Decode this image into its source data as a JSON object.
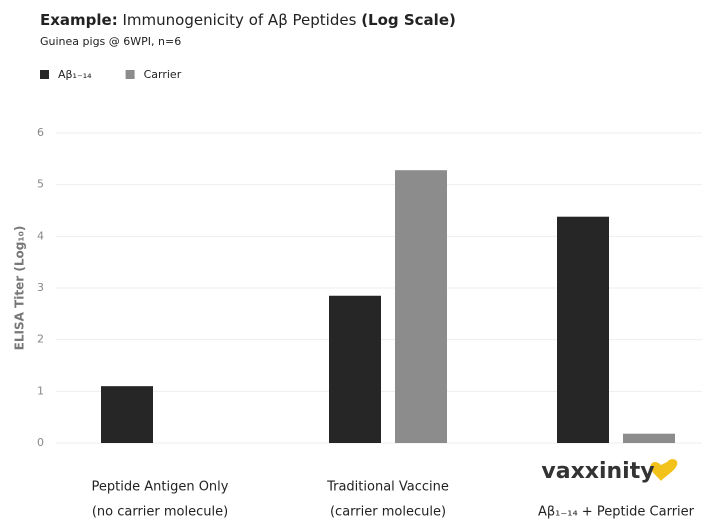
{
  "chart_data": {
    "type": "bar",
    "title_parts": [
      "Example:",
      " Immunogenicity of Aβ Peptides ",
      "(Log Scale)"
    ],
    "subtitle": "Guinea pigs @ 6WPI, n=6",
    "ylabel": "ELISA Titer (Log₁₀)",
    "categories": [
      [
        "Peptide Antigen Only",
        "(no carrier molecule)"
      ],
      [
        "Traditional Vaccine",
        "(carrier molecule)"
      ],
      [
        "Aβ₁₋₁₄ + Peptide Carrier"
      ]
    ],
    "logo_text": "vaxxinity",
    "series": [
      {
        "name": "Aβ₁₋₁₄",
        "color": "#262626",
        "values": [
          1.1,
          2.85,
          4.38
        ]
      },
      {
        "name": "Carrier",
        "color": "#8c8c8c",
        "values": [
          null,
          5.28,
          0.18
        ]
      }
    ],
    "ylim": [
      0,
      6
    ],
    "yticks": [
      0,
      1,
      2,
      3,
      4,
      5,
      6
    ],
    "grid": true,
    "legend": "top-left"
  }
}
